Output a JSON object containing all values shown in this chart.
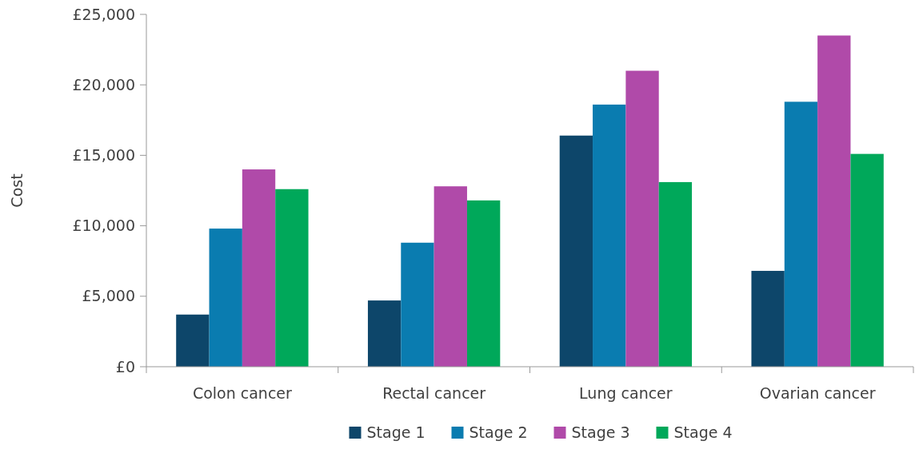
{
  "chart_data": {
    "type": "bar",
    "ylabel": "Cost",
    "categories": [
      "Colon cancer",
      "Rectal cancer",
      "Lung cancer",
      "Ovarian cancer"
    ],
    "series": [
      {
        "name": "Stage 1",
        "color": "#0d466a",
        "values": [
          3700,
          4700,
          16400,
          6800
        ]
      },
      {
        "name": "Stage 2",
        "color": "#0a7cb0",
        "values": [
          9800,
          8800,
          18600,
          18800
        ]
      },
      {
        "name": "Stage 3",
        "color": "#b04aa9",
        "values": [
          14000,
          12800,
          21000,
          23500
        ]
      },
      {
        "name": "Stage 4",
        "color": "#00a85a",
        "values": [
          12600,
          11800,
          13100,
          15100
        ]
      }
    ],
    "ylim": [
      0,
      25000
    ],
    "yticks": [
      {
        "value": 0,
        "label": "£0"
      },
      {
        "value": 5000,
        "label": "£5,000"
      },
      {
        "value": 10000,
        "label": "£10,000"
      },
      {
        "value": 15000,
        "label": "£15,000"
      },
      {
        "value": 20000,
        "label": "£20,000"
      },
      {
        "value": 25000,
        "label": "£25,000"
      }
    ],
    "grid": false,
    "legend": "bottom"
  }
}
